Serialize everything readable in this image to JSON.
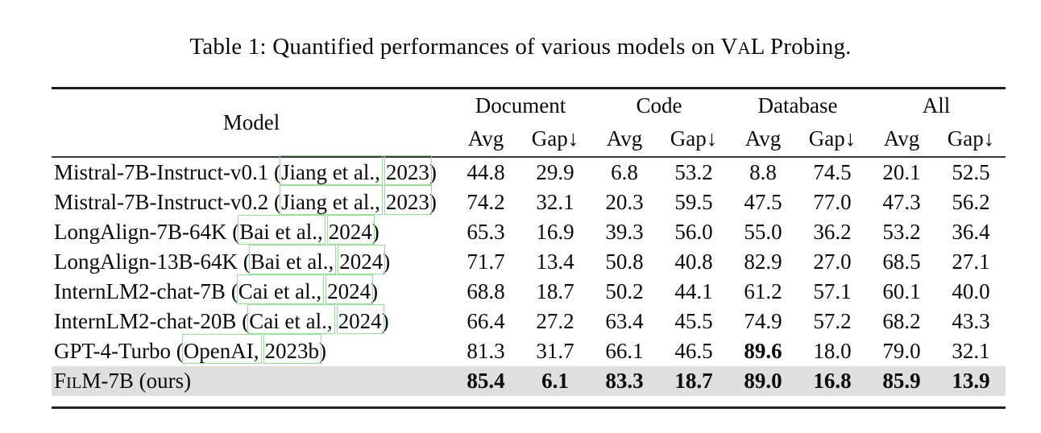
{
  "caption": {
    "prefix": "Table 1: Quantified performances of various models on V",
    "smallcaps": "A",
    "suffix": "L Probing."
  },
  "colors": {
    "citation_link_border": "#8ce98c",
    "highlight_row_background": "#dfdfdf"
  },
  "header": {
    "model": "Model",
    "groups": [
      {
        "label": "Document"
      },
      {
        "label": "Code"
      },
      {
        "label": "Database"
      },
      {
        "label": "All"
      }
    ],
    "sub": {
      "avg": "Avg",
      "gap": "Gap↓"
    }
  },
  "rows": [
    {
      "name": "Mistral-7B-Instruct-v0.1",
      "sc": "",
      "suffix": "",
      "paren_open": " (",
      "cite_a": "Jiang et al.,",
      "cite_b": "2023",
      "paren_close": ")",
      "values": [
        "44.8",
        "29.9",
        "6.8",
        "53.2",
        "8.8",
        "74.5",
        "20.1",
        "52.5"
      ]
    },
    {
      "name": "Mistral-7B-Instruct-v0.2",
      "sc": "",
      "suffix": "",
      "paren_open": " (",
      "cite_a": "Jiang et al.,",
      "cite_b": "2023",
      "paren_close": ")",
      "values": [
        "74.2",
        "32.1",
        "20.3",
        "59.5",
        "47.5",
        "77.0",
        "47.3",
        "56.2"
      ]
    },
    {
      "name": "LongAlign-7B-64K",
      "sc": "",
      "suffix": "",
      "paren_open": " (",
      "cite_a": "Bai et al.,",
      "cite_b": "2024",
      "paren_close": ")",
      "values": [
        "65.3",
        "16.9",
        "39.3",
        "56.0",
        "55.0",
        "36.2",
        "53.2",
        "36.4"
      ]
    },
    {
      "name": "LongAlign-13B-64K",
      "sc": "",
      "suffix": "",
      "paren_open": " (",
      "cite_a": "Bai et al.,",
      "cite_b": "2024",
      "paren_close": ")",
      "values": [
        "71.7",
        "13.4",
        "50.8",
        "40.8",
        "82.9",
        "27.0",
        "68.5",
        "27.1"
      ]
    },
    {
      "name": "InternLM2-chat-7B",
      "sc": "",
      "suffix": "",
      "paren_open": " (",
      "cite_a": "Cai et al.,",
      "cite_b": "2024",
      "paren_close": ")",
      "values": [
        "68.8",
        "18.7",
        "50.2",
        "44.1",
        "61.2",
        "57.1",
        "60.1",
        "40.0"
      ]
    },
    {
      "name": "InternLM2-chat-20B",
      "sc": "",
      "suffix": "",
      "paren_open": " (",
      "cite_a": "Cai et al.,",
      "cite_b": "2024",
      "paren_close": ")",
      "values": [
        "66.4",
        "27.2",
        "63.4",
        "45.5",
        "74.9",
        "57.2",
        "68.2",
        "43.3"
      ]
    },
    {
      "name": "GPT-4-Turbo",
      "sc": "",
      "suffix": "",
      "paren_open": " (",
      "cite_a": "OpenAI,",
      "cite_b": "2023b",
      "paren_close": ")",
      "values": [
        "81.3",
        "31.7",
        "66.1",
        "46.5",
        "89.6",
        "18.0",
        "79.0",
        "32.1"
      ]
    },
    {
      "name": "F",
      "sc": "IL",
      "suffix": "M-7B (ours)",
      "paren_open": "",
      "cite_a": "",
      "cite_b": "",
      "paren_close": "",
      "values": [
        "85.4",
        "6.1",
        "83.3",
        "18.7",
        "89.0",
        "16.8",
        "85.9",
        "13.9"
      ]
    }
  ]
}
